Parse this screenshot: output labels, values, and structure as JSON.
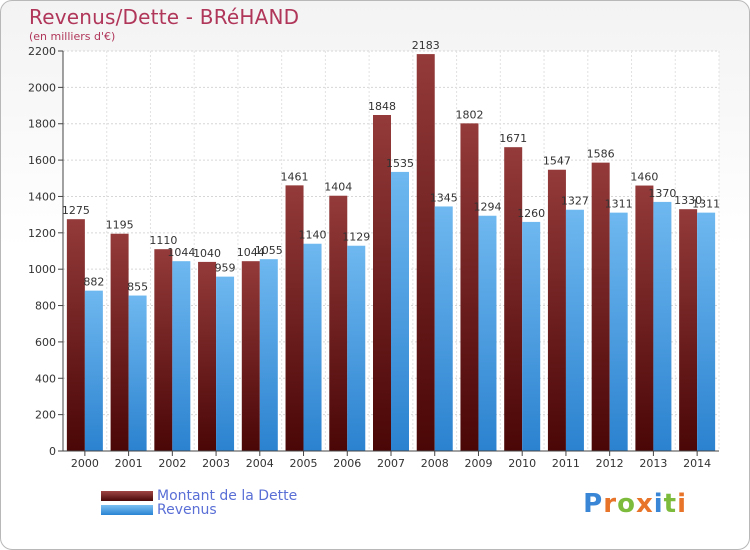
{
  "header": {
    "title": "Revenus/Dette - BRéHAND",
    "subtitle": "(en milliers d'€)"
  },
  "legend": [
    {
      "label": "Montant de la Dette",
      "color": "#7a1a1a"
    },
    {
      "label": "Revenus",
      "color": "#3b9ae6"
    }
  ],
  "logo": {
    "text": "Proxiti"
  },
  "chart_data": {
    "type": "bar",
    "title": "Revenus/Dette - BRéHAND",
    "subtitle": "(en milliers d'€)",
    "xlabel": "",
    "ylabel": "",
    "categories": [
      "2000",
      "2001",
      "2002",
      "2003",
      "2004",
      "2005",
      "2006",
      "2007",
      "2008",
      "2009",
      "2010",
      "2011",
      "2012",
      "2013",
      "2014"
    ],
    "series": [
      {
        "name": "Montant de la Dette",
        "color": "#7a1a1a",
        "values": [
          1275,
          1195,
          1110,
          1040,
          1044,
          1461,
          1404,
          1848,
          2183,
          1802,
          1671,
          1547,
          1586,
          1460,
          1330
        ]
      },
      {
        "name": "Revenus",
        "color": "#3b9ae6",
        "values": [
          882,
          855,
          1044,
          959,
          1055,
          1140,
          1129,
          1535,
          1345,
          1294,
          1260,
          1327,
          1311,
          1370,
          1311
        ]
      }
    ],
    "ylim": [
      0,
      2200
    ],
    "yticks": [
      0,
      200,
      400,
      600,
      800,
      1000,
      1200,
      1400,
      1600,
      1800,
      2000,
      2200
    ],
    "grid": true,
    "legend_position": "bottom-left"
  }
}
